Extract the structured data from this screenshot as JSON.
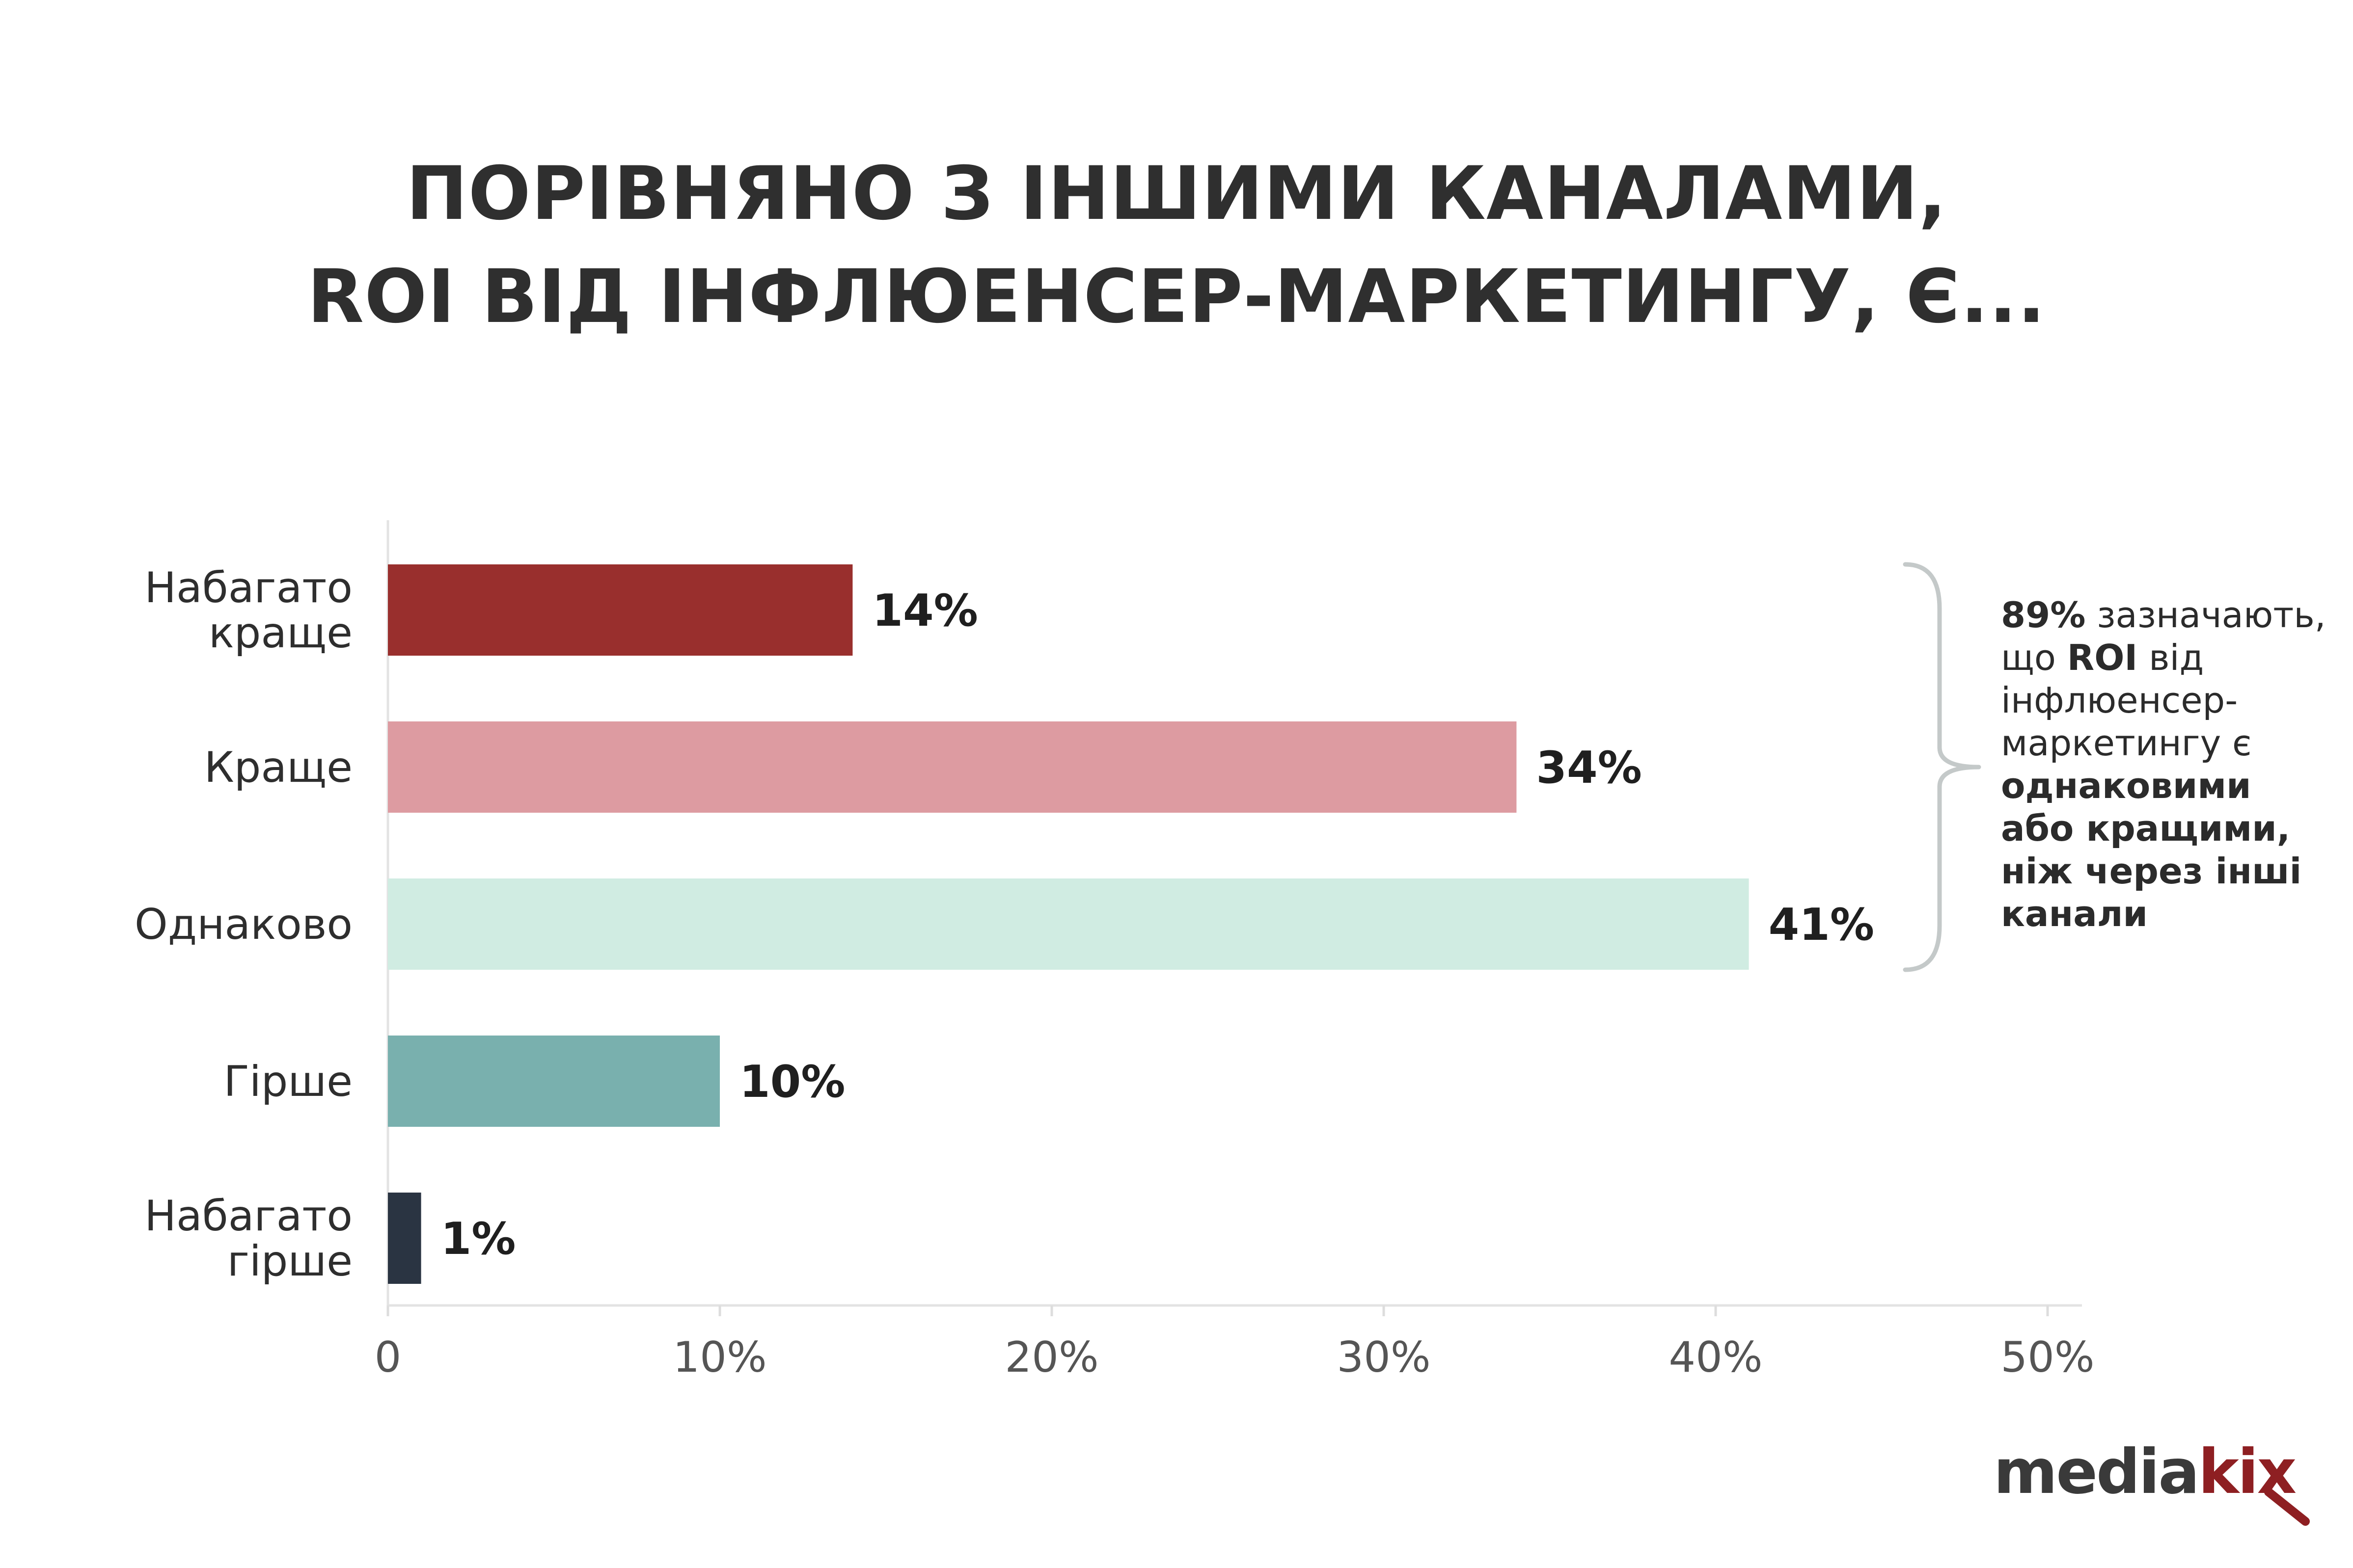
{
  "title": {
    "line1": "ПОРІВНЯНО З ІНШИМИ КАНАЛАМИ,",
    "line2": "ROI ВІД ІНФЛЮЕНСЕР-МАРКЕТИНГУ, Є..."
  },
  "chart_data": {
    "type": "bar",
    "orientation": "horizontal",
    "categories": [
      [
        "Набагато",
        "краще"
      ],
      [
        "Краще"
      ],
      [
        "Однаково"
      ],
      [
        "Гірше"
      ],
      [
        "Набагато",
        "гірше"
      ]
    ],
    "values": [
      14,
      34,
      41,
      10,
      1
    ],
    "value_labels": [
      "14%",
      "34%",
      "41%",
      "10%",
      "1%"
    ],
    "colors": [
      "#992f2d",
      "#dd9ba1",
      "#d0ece2",
      "#79b0ae",
      "#2a3442"
    ],
    "xlim": [
      0,
      50
    ],
    "x_ticks": [
      0,
      10,
      20,
      30,
      40,
      50
    ],
    "x_tick_labels": [
      "0",
      "10%",
      "20%",
      "30%",
      "40%",
      "50%"
    ],
    "grid": false
  },
  "annotation": {
    "bracket_covers": [
      "Набагато краще",
      "Краще",
      "Однаково"
    ],
    "pct": "89%",
    "text_a": " зазначають,",
    "text_b": "що ",
    "roi": "ROI",
    "text_c": " від",
    "text_d": "інфлюенсер-",
    "text_e": "маркетингу є",
    "bold1": "однаковими",
    "bold2": "або кращими,",
    "bold3": "ніж через інші",
    "bold4": "канали"
  },
  "logo": {
    "part1": "media",
    "part2": "kix",
    "accent_color": "#8e1f22"
  }
}
